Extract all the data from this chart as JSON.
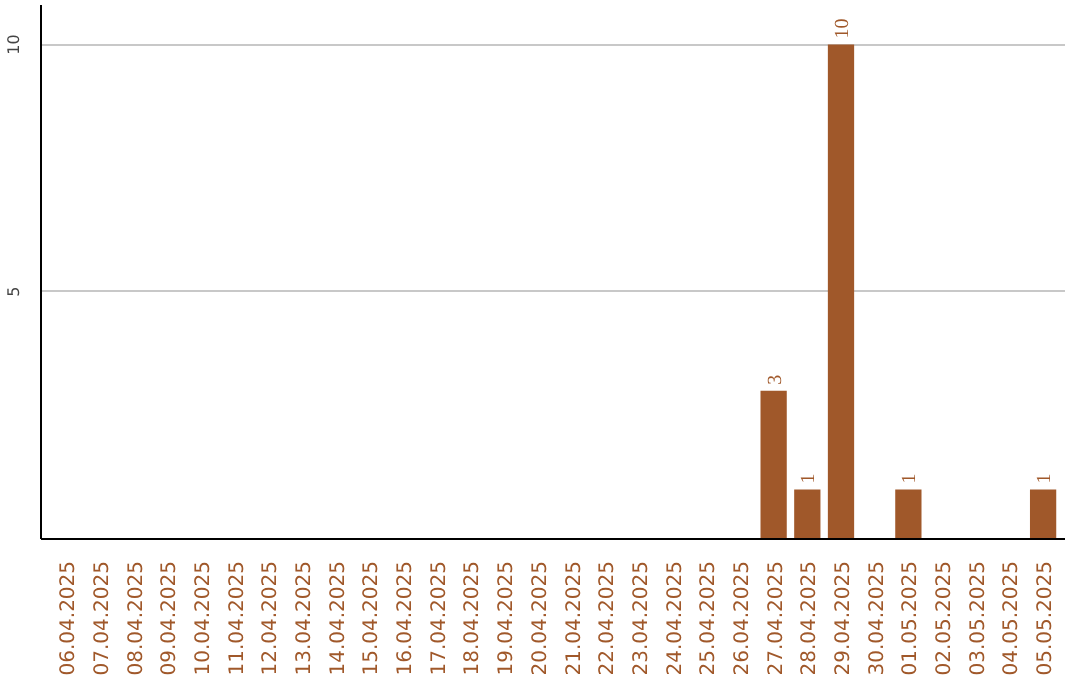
{
  "chart_data": {
    "type": "bar",
    "categories": [
      "06.04.2025",
      "07.04.2025",
      "08.04.2025",
      "09.04.2025",
      "10.04.2025",
      "11.04.2025",
      "12.04.2025",
      "13.04.2025",
      "14.04.2025",
      "15.04.2025",
      "16.04.2025",
      "17.04.2025",
      "18.04.2025",
      "19.04.2025",
      "20.04.2025",
      "21.04.2025",
      "22.04.2025",
      "23.04.2025",
      "24.04.2025",
      "25.04.2025",
      "26.04.2025",
      "27.04.2025",
      "28.04.2025",
      "29.04.2025",
      "30.04.2025",
      "01.05.2025",
      "02.05.2025",
      "03.05.2025",
      "04.05.2025",
      "05.05.2025"
    ],
    "values": [
      0,
      0,
      0,
      0,
      0,
      0,
      0,
      0,
      0,
      0,
      0,
      0,
      0,
      0,
      0,
      0,
      0,
      0,
      0,
      0,
      0,
      3,
      1,
      10,
      0,
      1,
      0,
      0,
      0,
      1
    ],
    "value_labels": [
      null,
      null,
      null,
      null,
      null,
      null,
      null,
      null,
      null,
      null,
      null,
      null,
      null,
      null,
      null,
      null,
      null,
      null,
      null,
      null,
      null,
      "3",
      "1",
      "10",
      null,
      "1",
      null,
      null,
      null,
      "1"
    ],
    "color": "#a0582a",
    "ylim": [
      0,
      10.8
    ],
    "yticks": [
      5,
      10
    ],
    "grid": "y"
  }
}
